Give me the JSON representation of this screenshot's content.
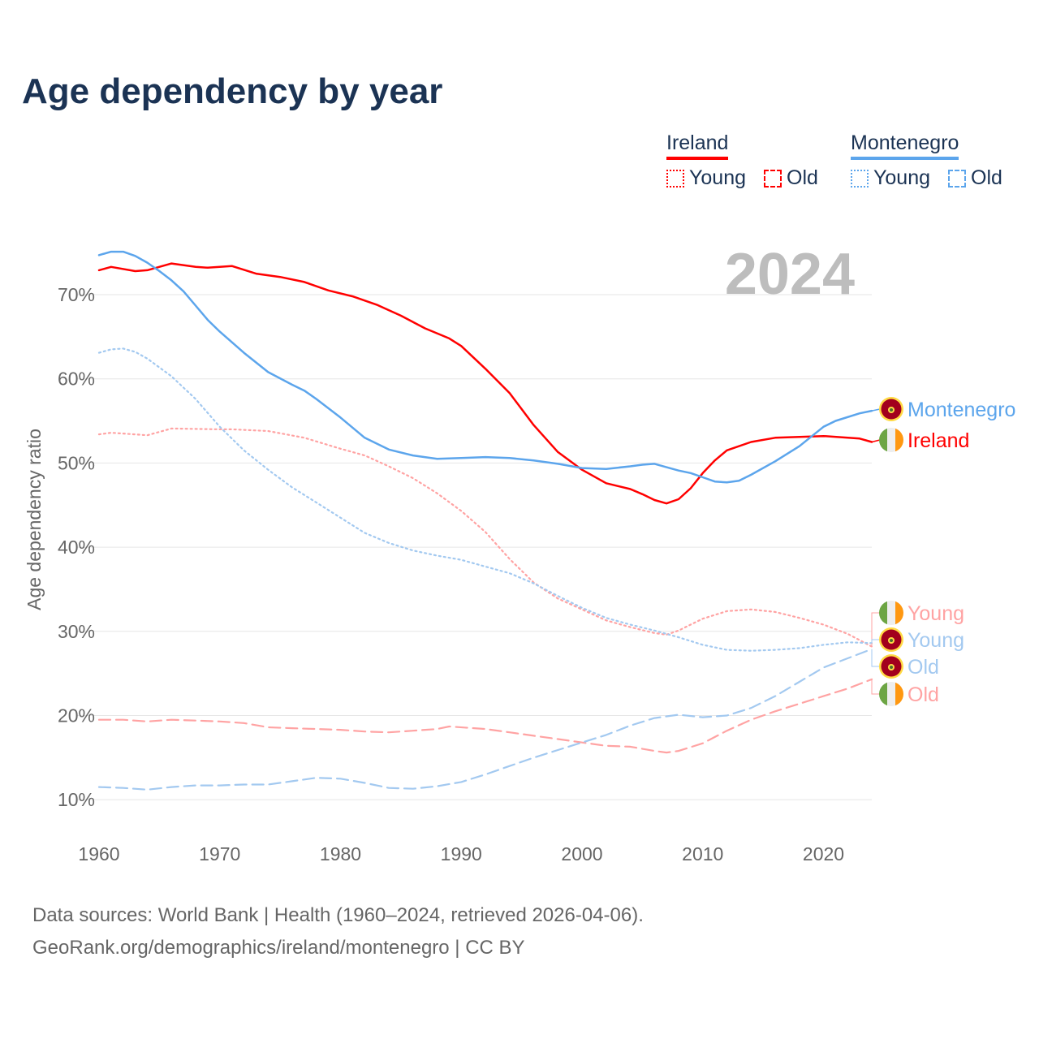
{
  "title": "Age dependency by year",
  "legend": {
    "ireland": {
      "name": "Ireland",
      "young": "Young",
      "old": "Old"
    },
    "montenegro": {
      "name": "Montenegro",
      "young": "Young",
      "old": "Old"
    }
  },
  "source": {
    "line1": "Data sources: World Bank | Health (1960–2024, retrieved 2026-04-06).",
    "line2": "GeoRank.org/demographics/ireland/montenegro | CC BY"
  },
  "colors": {
    "ireland": "#ff0000",
    "ireland_light": "#ffa3a3",
    "montenegro": "#5ca5ec",
    "montenegro_light": "#a3c9f0",
    "title": "#1b3354"
  },
  "chart_data": {
    "type": "line",
    "title": "Age dependency by year",
    "year_label": "2024",
    "xlabel": "",
    "ylabel": "Age dependency ratio",
    "xlim": [
      1960,
      2024
    ],
    "ylim": [
      10,
      75
    ],
    "x_ticks": [
      1960,
      1970,
      1980,
      1990,
      2000,
      2010,
      2020
    ],
    "y_ticks": [
      "10%",
      "20%",
      "30%",
      "40%",
      "50%",
      "60%",
      "70%"
    ],
    "y_tick_values": [
      10,
      20,
      30,
      40,
      50,
      60,
      70
    ],
    "grid": true,
    "legend_placement": "top-right",
    "end_labels": [
      "Montenegro",
      "Ireland",
      "Young",
      "Young",
      "Old",
      "Old"
    ],
    "series": [
      {
        "name": "Ireland",
        "style": "solid",
        "color": "#ff0000",
        "points": [
          [
            1960,
            72.9
          ],
          [
            1961,
            73.3
          ],
          [
            1963,
            72.8
          ],
          [
            1964,
            72.9
          ],
          [
            1966,
            73.7
          ],
          [
            1968,
            73.3
          ],
          [
            1969,
            73.2
          ],
          [
            1971,
            73.4
          ],
          [
            1973,
            72.5
          ],
          [
            1975,
            72.1
          ],
          [
            1977,
            71.5
          ],
          [
            1979,
            70.5
          ],
          [
            1981,
            69.8
          ],
          [
            1983,
            68.8
          ],
          [
            1985,
            67.5
          ],
          [
            1987,
            66.0
          ],
          [
            1989,
            64.8
          ],
          [
            1990,
            63.9
          ],
          [
            1992,
            61.2
          ],
          [
            1994,
            58.3
          ],
          [
            1996,
            54.5
          ],
          [
            1998,
            51.3
          ],
          [
            2000,
            49.2
          ],
          [
            2002,
            47.6
          ],
          [
            2004,
            46.9
          ],
          [
            2005,
            46.3
          ],
          [
            2006,
            45.6
          ],
          [
            2007,
            45.2
          ],
          [
            2008,
            45.7
          ],
          [
            2009,
            47.0
          ],
          [
            2010,
            48.8
          ],
          [
            2011,
            50.3
          ],
          [
            2012,
            51.5
          ],
          [
            2014,
            52.5
          ],
          [
            2016,
            53.0
          ],
          [
            2018,
            53.1
          ],
          [
            2020,
            53.2
          ],
          [
            2023,
            52.9
          ],
          [
            2024,
            52.5
          ]
        ]
      },
      {
        "name": "Montenegro",
        "style": "solid",
        "color": "#5ca5ec",
        "points": [
          [
            1960,
            74.7
          ],
          [
            1961,
            75.1
          ],
          [
            1962,
            75.1
          ],
          [
            1963,
            74.6
          ],
          [
            1964,
            73.8
          ],
          [
            1965,
            72.8
          ],
          [
            1966,
            71.7
          ],
          [
            1967,
            70.4
          ],
          [
            1968,
            68.7
          ],
          [
            1969,
            67.0
          ],
          [
            1970,
            65.6
          ],
          [
            1972,
            63.1
          ],
          [
            1974,
            60.8
          ],
          [
            1976,
            59.3
          ],
          [
            1977,
            58.6
          ],
          [
            1978,
            57.6
          ],
          [
            1980,
            55.4
          ],
          [
            1982,
            53.0
          ],
          [
            1984,
            51.6
          ],
          [
            1986,
            50.9
          ],
          [
            1988,
            50.5
          ],
          [
            1990,
            50.6
          ],
          [
            1992,
            50.7
          ],
          [
            1994,
            50.6
          ],
          [
            1996,
            50.3
          ],
          [
            1998,
            49.9
          ],
          [
            2000,
            49.4
          ],
          [
            2002,
            49.3
          ],
          [
            2004,
            49.6
          ],
          [
            2005,
            49.8
          ],
          [
            2006,
            49.9
          ],
          [
            2007,
            49.5
          ],
          [
            2008,
            49.1
          ],
          [
            2009,
            48.8
          ],
          [
            2010,
            48.3
          ],
          [
            2011,
            47.8
          ],
          [
            2012,
            47.7
          ],
          [
            2013,
            47.9
          ],
          [
            2014,
            48.6
          ],
          [
            2016,
            50.2
          ],
          [
            2018,
            52.0
          ],
          [
            2020,
            54.3
          ],
          [
            2021,
            55.0
          ],
          [
            2023,
            55.9
          ],
          [
            2024,
            56.2
          ]
        ]
      },
      {
        "name": "Ireland Young",
        "style": "dotted",
        "color": "#ffa3a3",
        "points": [
          [
            1960,
            53.4
          ],
          [
            1961,
            53.6
          ],
          [
            1964,
            53.3
          ],
          [
            1966,
            54.1
          ],
          [
            1970,
            54.0
          ],
          [
            1971,
            54.0
          ],
          [
            1974,
            53.8
          ],
          [
            1977,
            53.0
          ],
          [
            1980,
            51.7
          ],
          [
            1982,
            50.9
          ],
          [
            1984,
            49.6
          ],
          [
            1986,
            48.2
          ],
          [
            1988,
            46.4
          ],
          [
            1990,
            44.3
          ],
          [
            1992,
            41.8
          ],
          [
            1994,
            38.6
          ],
          [
            1996,
            35.8
          ],
          [
            1998,
            33.9
          ],
          [
            2000,
            32.6
          ],
          [
            2002,
            31.3
          ],
          [
            2004,
            30.5
          ],
          [
            2006,
            29.8
          ],
          [
            2007,
            29.6
          ],
          [
            2008,
            30.1
          ],
          [
            2010,
            31.5
          ],
          [
            2012,
            32.4
          ],
          [
            2014,
            32.6
          ],
          [
            2016,
            32.3
          ],
          [
            2018,
            31.6
          ],
          [
            2020,
            30.8
          ],
          [
            2022,
            29.7
          ],
          [
            2024,
            28.2
          ]
        ]
      },
      {
        "name": "Montenegro Young",
        "style": "dotted",
        "color": "#a3c9f0",
        "points": [
          [
            1960,
            63.1
          ],
          [
            1961,
            63.5
          ],
          [
            1962,
            63.6
          ],
          [
            1963,
            63.2
          ],
          [
            1964,
            62.4
          ],
          [
            1966,
            60.3
          ],
          [
            1968,
            57.6
          ],
          [
            1970,
            54.3
          ],
          [
            1972,
            51.5
          ],
          [
            1974,
            49.2
          ],
          [
            1976,
            47.1
          ],
          [
            1978,
            45.3
          ],
          [
            1980,
            43.5
          ],
          [
            1982,
            41.7
          ],
          [
            1984,
            40.5
          ],
          [
            1986,
            39.6
          ],
          [
            1988,
            39.0
          ],
          [
            1990,
            38.5
          ],
          [
            1992,
            37.7
          ],
          [
            1994,
            36.9
          ],
          [
            1996,
            35.7
          ],
          [
            1998,
            34.2
          ],
          [
            2000,
            32.8
          ],
          [
            2002,
            31.6
          ],
          [
            2004,
            30.8
          ],
          [
            2006,
            30.1
          ],
          [
            2008,
            29.3
          ],
          [
            2010,
            28.4
          ],
          [
            2012,
            27.8
          ],
          [
            2014,
            27.7
          ],
          [
            2016,
            27.8
          ],
          [
            2018,
            28.0
          ],
          [
            2020,
            28.4
          ],
          [
            2022,
            28.7
          ],
          [
            2024,
            28.6
          ]
        ]
      },
      {
        "name": "Ireland Old",
        "style": "dashed",
        "color": "#ffa3a3",
        "points": [
          [
            1960,
            19.5
          ],
          [
            1962,
            19.5
          ],
          [
            1964,
            19.3
          ],
          [
            1966,
            19.5
          ],
          [
            1968,
            19.4
          ],
          [
            1970,
            19.3
          ],
          [
            1972,
            19.1
          ],
          [
            1974,
            18.6
          ],
          [
            1976,
            18.5
          ],
          [
            1978,
            18.4
          ],
          [
            1980,
            18.3
          ],
          [
            1982,
            18.1
          ],
          [
            1984,
            18.0
          ],
          [
            1986,
            18.2
          ],
          [
            1988,
            18.4
          ],
          [
            1989,
            18.7
          ],
          [
            1992,
            18.4
          ],
          [
            1994,
            18.0
          ],
          [
            1996,
            17.6
          ],
          [
            1998,
            17.2
          ],
          [
            2000,
            16.8
          ],
          [
            2002,
            16.4
          ],
          [
            2004,
            16.3
          ],
          [
            2006,
            15.8
          ],
          [
            2007,
            15.6
          ],
          [
            2008,
            15.8
          ],
          [
            2010,
            16.7
          ],
          [
            2012,
            18.2
          ],
          [
            2014,
            19.5
          ],
          [
            2016,
            20.5
          ],
          [
            2018,
            21.4
          ],
          [
            2020,
            22.3
          ],
          [
            2022,
            23.2
          ],
          [
            2024,
            24.3
          ]
        ]
      },
      {
        "name": "Montenegro Old",
        "style": "dashed",
        "color": "#a3c9f0",
        "points": [
          [
            1960,
            11.5
          ],
          [
            1962,
            11.4
          ],
          [
            1964,
            11.2
          ],
          [
            1966,
            11.5
          ],
          [
            1968,
            11.7
          ],
          [
            1970,
            11.7
          ],
          [
            1972,
            11.8
          ],
          [
            1974,
            11.8
          ],
          [
            1976,
            12.2
          ],
          [
            1978,
            12.6
          ],
          [
            1980,
            12.5
          ],
          [
            1982,
            12.0
          ],
          [
            1984,
            11.4
          ],
          [
            1986,
            11.3
          ],
          [
            1988,
            11.6
          ],
          [
            1990,
            12.1
          ],
          [
            1992,
            13.0
          ],
          [
            1994,
            14.0
          ],
          [
            1996,
            15.0
          ],
          [
            1998,
            15.9
          ],
          [
            2000,
            16.8
          ],
          [
            2002,
            17.7
          ],
          [
            2004,
            18.8
          ],
          [
            2006,
            19.7
          ],
          [
            2008,
            20.1
          ],
          [
            2010,
            19.8
          ],
          [
            2012,
            20.0
          ],
          [
            2014,
            20.9
          ],
          [
            2016,
            22.3
          ],
          [
            2018,
            24.0
          ],
          [
            2020,
            25.7
          ],
          [
            2022,
            26.8
          ],
          [
            2024,
            27.9
          ]
        ]
      }
    ]
  }
}
